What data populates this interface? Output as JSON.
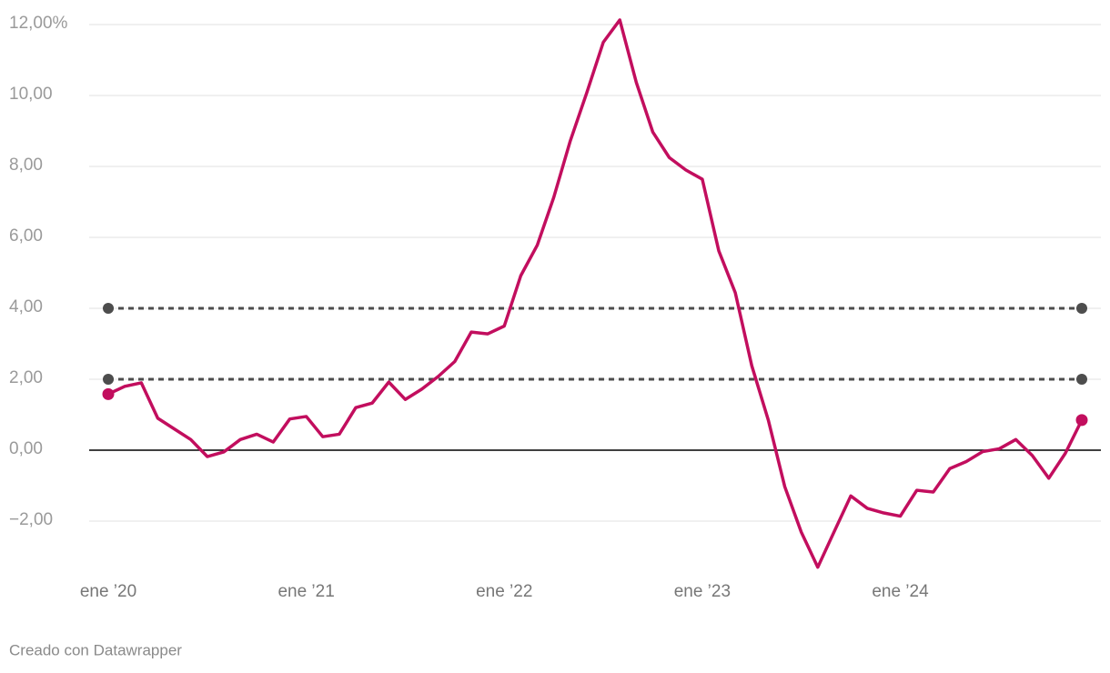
{
  "chart_data": {
    "type": "line",
    "categories": [
      "ene ’20",
      null,
      null,
      null,
      null,
      null,
      null,
      null,
      null,
      null,
      null,
      null,
      "ene ’21",
      null,
      null,
      null,
      null,
      null,
      null,
      null,
      null,
      null,
      null,
      null,
      "ene ’22",
      null,
      null,
      null,
      null,
      null,
      null,
      null,
      null,
      null,
      null,
      null,
      "ene ’23",
      null,
      null,
      null,
      null,
      null,
      null,
      null,
      null,
      null,
      null,
      null,
      "ene ’24",
      null,
      null,
      null,
      null,
      null,
      null,
      null,
      null,
      null,
      null,
      null
    ],
    "values": [
      1.58,
      1.8,
      1.9,
      0.9,
      0.6,
      0.3,
      -0.18,
      -0.05,
      0.3,
      0.45,
      0.23,
      0.88,
      0.95,
      0.38,
      0.45,
      1.2,
      1.33,
      1.92,
      1.43,
      1.72,
      2.08,
      2.5,
      3.33,
      3.28,
      3.5,
      4.92,
      5.78,
      7.13,
      8.72,
      10.08,
      11.5,
      12.13,
      10.37,
      8.97,
      8.25,
      7.9,
      7.64,
      5.62,
      4.44,
      2.38,
      0.85,
      -1.03,
      -2.31,
      -3.3,
      -2.29,
      -1.29,
      -1.64,
      -1.77,
      -1.86,
      -1.13,
      -1.18,
      -0.52,
      -0.32,
      -0.04,
      0.04,
      0.3,
      -0.15,
      -0.79,
      -0.09,
      0.85
    ],
    "color": "#c20e5e",
    "endpoint_markers": true,
    "reference_lines": [
      2,
      4
    ],
    "reference_color": "#4d4d4d",
    "ylim": [
      -3.7,
      12.4
    ],
    "yticks": [
      {
        "value": -2,
        "label": "−2,00"
      },
      {
        "value": 0,
        "label": "0,00"
      },
      {
        "value": 2,
        "label": "2,00"
      },
      {
        "value": 4,
        "label": "4,00"
      },
      {
        "value": 6,
        "label": "6,00"
      },
      {
        "value": 8,
        "label": "8,00"
      },
      {
        "value": 10,
        "label": "10,00"
      },
      {
        "value": 12,
        "label": "12,00%"
      }
    ],
    "grid": true,
    "footer": "Creado con Datawrapper"
  }
}
